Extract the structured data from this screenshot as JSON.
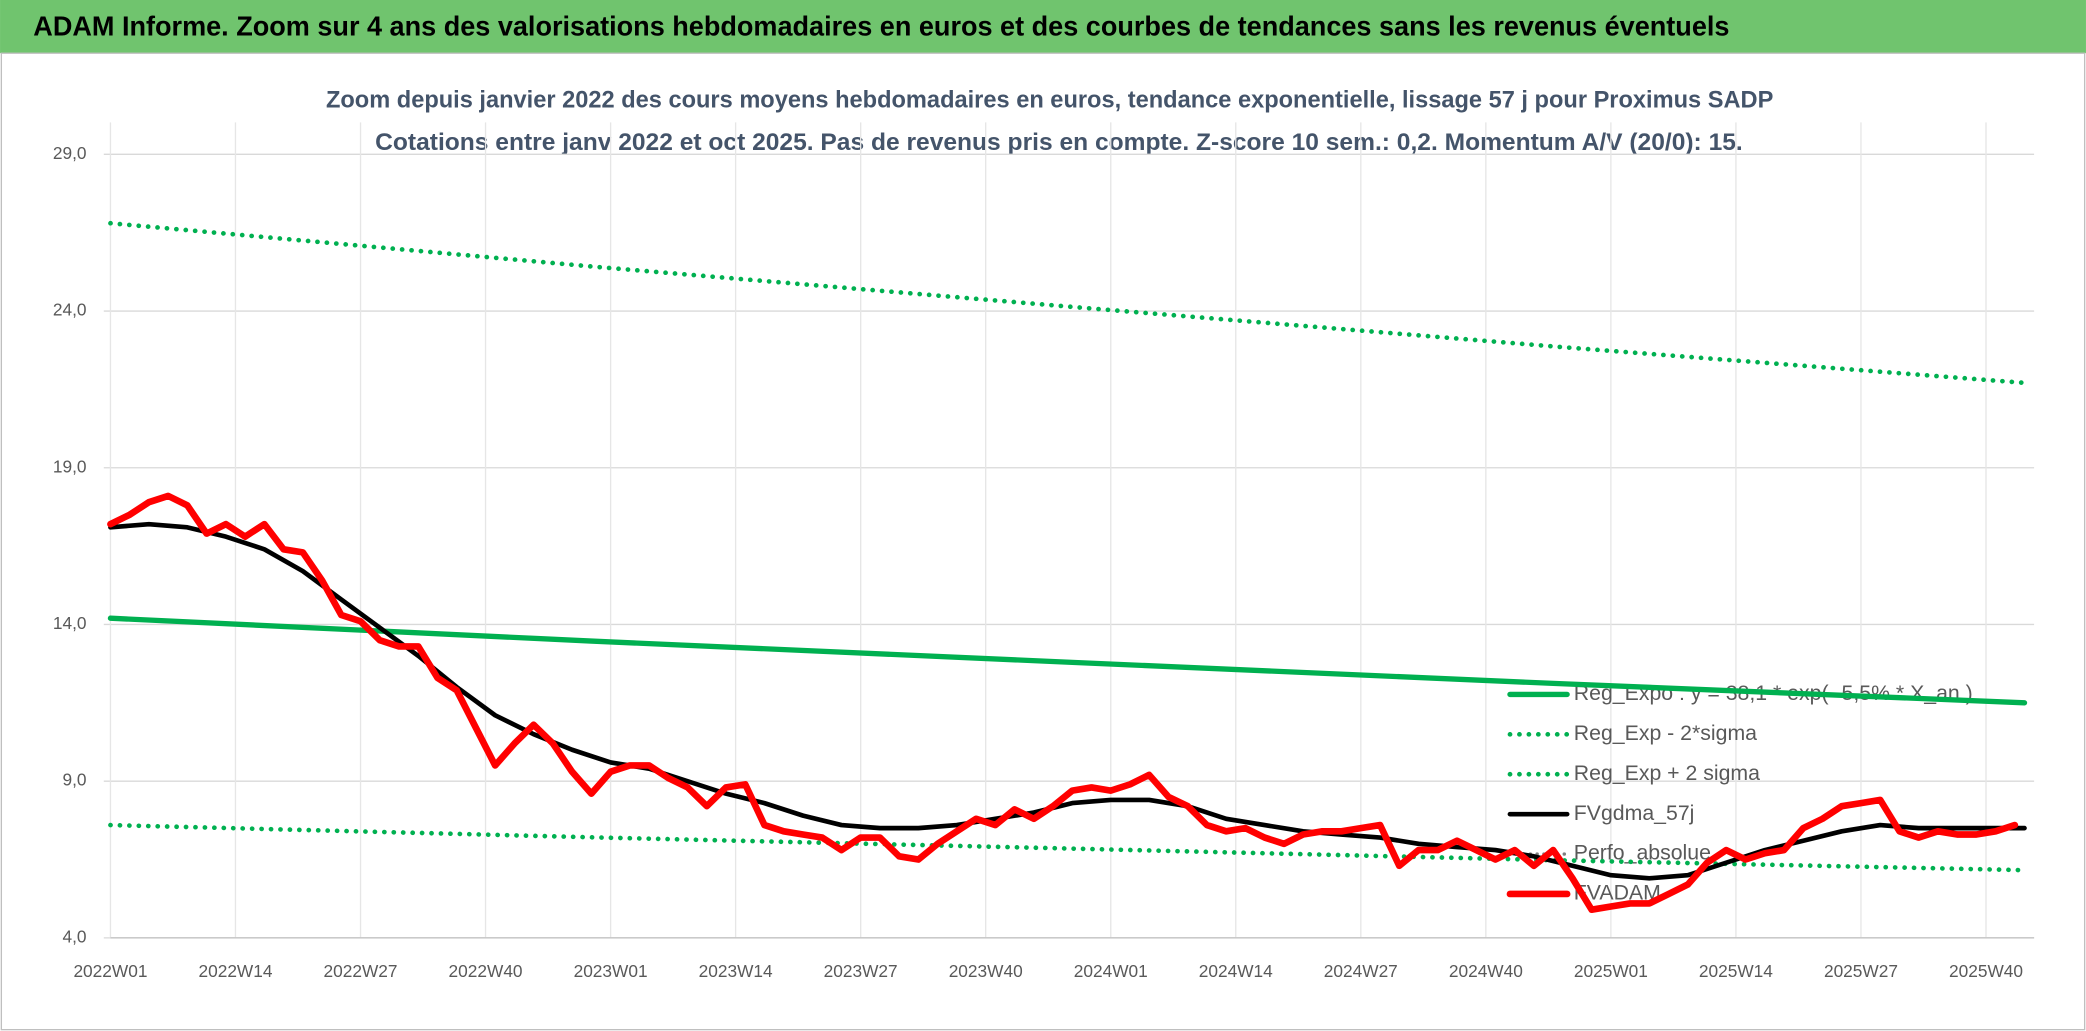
{
  "chart_data": {
    "type": "line",
    "banner": "ADAM Informe. Zoom sur 4 ans des valorisations hebdomadaires en euros et des courbes de tendances sans les revenus éventuels",
    "title": "Zoom depuis janvier 2022 des cours moyens hebdomadaires en euros, tendance exponentielle, lissage 57 j pour Proximus SADP",
    "subtitle": "Cotations entre janv 2022 et oct 2025. Pas de revenus pris en compte. Z-score 10 sem.: 0,2. Momentum A/V (20/0): 15.",
    "xlim": [
      0,
      200
    ],
    "xticks": [
      {
        "value": 0,
        "label": "2022W01"
      },
      {
        "value": 13,
        "label": "2022W14"
      },
      {
        "value": 26,
        "label": "2022W27"
      },
      {
        "value": 39,
        "label": "2022W40"
      },
      {
        "value": 52,
        "label": "2023W01"
      },
      {
        "value": 65,
        "label": "2023W14"
      },
      {
        "value": 78,
        "label": "2023W27"
      },
      {
        "value": 91,
        "label": "2023W40"
      },
      {
        "value": 104,
        "label": "2024W01"
      },
      {
        "value": 117,
        "label": "2024W14"
      },
      {
        "value": 130,
        "label": "2024W27"
      },
      {
        "value": 143,
        "label": "2024W40"
      },
      {
        "value": 156,
        "label": "2025W01"
      },
      {
        "value": 169,
        "label": "2025W14"
      },
      {
        "value": 182,
        "label": "2025W27"
      },
      {
        "value": 195,
        "label": "2025W40"
      }
    ],
    "ylim": [
      4,
      29
    ],
    "yticks": [
      {
        "value": 4,
        "label": "4,0"
      },
      {
        "value": 9,
        "label": "9,0"
      },
      {
        "value": 14,
        "label": "14,0"
      },
      {
        "value": 19,
        "label": "19,0"
      },
      {
        "value": 24,
        "label": "24,0"
      },
      {
        "value": 29,
        "label": "29,0"
      }
    ],
    "grid": true,
    "legend": "right",
    "series": [
      {
        "name": "Reg_Expo : y = 38,1 * exp( -5,5% * X_an )",
        "color": "#00b050",
        "dash": "solid",
        "width": 4,
        "x": [
          0,
          50,
          100,
          150,
          199
        ],
        "values": [
          14.2,
          13.47,
          12.79,
          12.12,
          11.5
        ]
      },
      {
        "name": "Reg_Exp - 2*sigma",
        "color": "#00b050",
        "dash": "dotted",
        "width": 3.5,
        "x": [
          0,
          50,
          100,
          150,
          199
        ],
        "values": [
          7.6,
          7.21,
          6.85,
          6.48,
          6.16
        ]
      },
      {
        "name": "Reg_Exp + 2 sigma",
        "color": "#00b050",
        "dash": "dotted",
        "width": 3.5,
        "x": [
          0,
          50,
          100,
          150,
          199
        ],
        "values": [
          26.8,
          25.42,
          24.13,
          22.87,
          21.71
        ]
      },
      {
        "name": "FVgdma_57j",
        "color": "#000000",
        "dash": "solid",
        "width": 3.5,
        "x": [
          0,
          4,
          8,
          12,
          16,
          20,
          24,
          28,
          32,
          36,
          40,
          44,
          48,
          52,
          56,
          60,
          64,
          68,
          72,
          76,
          80,
          84,
          88,
          92,
          96,
          100,
          104,
          108,
          112,
          116,
          120,
          124,
          128,
          132,
          136,
          140,
          144,
          148,
          152,
          156,
          160,
          164,
          168,
          172,
          176,
          180,
          184,
          188,
          192,
          196,
          199
        ],
        "values": [
          17.1,
          17.2,
          17.1,
          16.8,
          16.4,
          15.7,
          14.8,
          13.9,
          13.0,
          12.0,
          11.1,
          10.5,
          10.0,
          9.6,
          9.4,
          9.0,
          8.6,
          8.3,
          7.9,
          7.6,
          7.5,
          7.5,
          7.6,
          7.8,
          8.0,
          8.3,
          8.4,
          8.4,
          8.2,
          7.8,
          7.6,
          7.4,
          7.3,
          7.2,
          7.0,
          6.9,
          6.8,
          6.6,
          6.3,
          6.0,
          5.9,
          6.0,
          6.4,
          6.8,
          7.1,
          7.4,
          7.6,
          7.5,
          7.5,
          7.5,
          7.5
        ]
      },
      {
        "name": "Perfo_absolue",
        "color": "#7f7f7f",
        "dash": "dotted",
        "width": 2.5,
        "x": [],
        "values": []
      },
      {
        "name": "FVADAM",
        "color": "#ff0000",
        "dash": "solid",
        "width": 5,
        "x": [
          0,
          2,
          4,
          6,
          8,
          10,
          12,
          14,
          16,
          18,
          20,
          22,
          24,
          26,
          28,
          30,
          32,
          34,
          36,
          38,
          40,
          42,
          44,
          46,
          48,
          50,
          52,
          54,
          56,
          58,
          60,
          62,
          64,
          66,
          68,
          70,
          72,
          74,
          76,
          78,
          80,
          82,
          84,
          86,
          88,
          90,
          92,
          94,
          96,
          98,
          100,
          102,
          104,
          106,
          108,
          110,
          112,
          114,
          116,
          118,
          120,
          122,
          124,
          126,
          128,
          130,
          132,
          134,
          136,
          138,
          140,
          142,
          144,
          146,
          148,
          150,
          152,
          154,
          156,
          158,
          160,
          162,
          164,
          166,
          168,
          170,
          172,
          174,
          176,
          178,
          180,
          182,
          184,
          186,
          188,
          190,
          192,
          194,
          196,
          198
        ],
        "values": [
          17.2,
          17.5,
          17.9,
          18.1,
          17.8,
          16.9,
          17.2,
          16.8,
          17.2,
          16.4,
          16.3,
          15.4,
          14.3,
          14.1,
          13.5,
          13.3,
          13.3,
          12.3,
          11.9,
          10.7,
          9.5,
          10.2,
          10.8,
          10.2,
          9.3,
          8.6,
          9.3,
          9.5,
          9.5,
          9.1,
          8.8,
          8.2,
          8.8,
          8.9,
          7.6,
          7.4,
          7.3,
          7.2,
          6.8,
          7.2,
          7.2,
          6.6,
          6.5,
          7.0,
          7.4,
          7.8,
          7.6,
          8.1,
          7.8,
          8.2,
          8.7,
          8.8,
          8.7,
          8.9,
          9.2,
          8.5,
          8.2,
          7.6,
          7.4,
          7.5,
          7.2,
          7.0,
          7.3,
          7.4,
          7.4,
          7.5,
          7.6,
          6.3,
          6.8,
          6.8,
          7.1,
          6.8,
          6.5,
          6.8,
          6.3,
          6.8,
          5.9,
          4.9,
          5.0,
          5.1,
          5.1,
          5.4,
          5.7,
          6.4,
          6.8,
          6.5,
          6.7,
          6.8,
          7.5,
          7.8,
          8.2,
          8.3,
          8.4,
          7.4,
          7.2,
          7.4,
          7.3,
          7.3,
          7.4,
          7.6
        ]
      }
    ]
  }
}
